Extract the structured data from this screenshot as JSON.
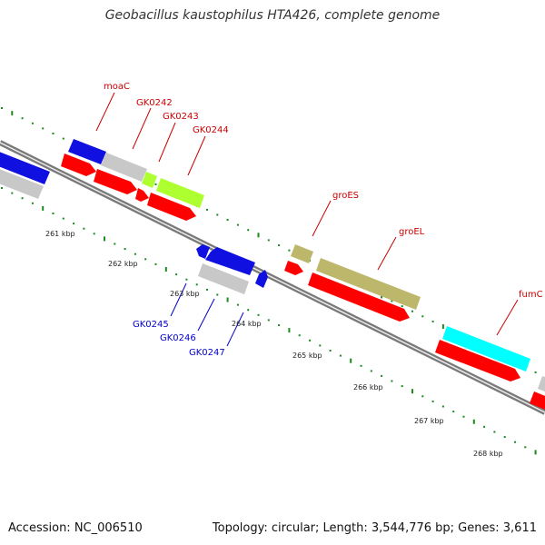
{
  "header": {
    "title": "Geobacillus kaustophilus HTA426, complete genome"
  },
  "footer": {
    "accession": "Accession: NC_006510",
    "stats": "Topology: circular; Length: 3,544,776 bp; Genes: 3,611"
  },
  "colors": {
    "backbone": "#7a7a7a",
    "tick": "#1a8a1a",
    "cds": "#ff0000",
    "gene": "#c8c8c8",
    "blue": "#1010e0",
    "olive": "#bdb76b",
    "lime": "#adff2f",
    "cyan": "#00ffff",
    "forward_label": "#cc0000",
    "reverse_label": "#0000cc"
  },
  "scale_labels": [
    "261 kbp",
    "262 kbp",
    "263 kbp",
    "264 kbp",
    "265 kbp",
    "266 kbp",
    "267 kbp",
    "268 kbp"
  ],
  "genes_forward": [
    {
      "name": "moaC"
    },
    {
      "name": "GK0242"
    },
    {
      "name": "GK0243"
    },
    {
      "name": "GK0244"
    },
    {
      "name": "groES"
    },
    {
      "name": "groEL"
    },
    {
      "name": "fumC"
    }
  ],
  "genes_reverse": [
    {
      "name": "GK0245"
    },
    {
      "name": "GK0246"
    },
    {
      "name": "GK0247"
    }
  ]
}
